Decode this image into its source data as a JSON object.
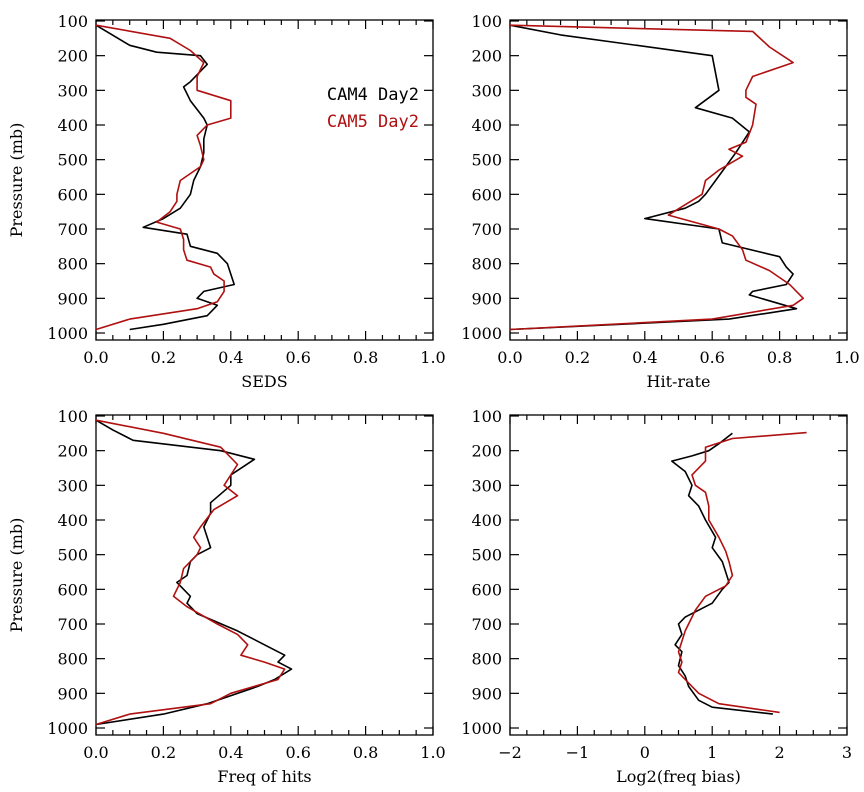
{
  "colors": {
    "cam4": "#000000",
    "cam5": "#b01010"
  },
  "chart_data": [
    {
      "type": "line",
      "title": "",
      "xlabel": "SEDS",
      "ylabel": "Pressure (mb)",
      "xlim": [
        0.0,
        1.0
      ],
      "ylim": [
        1000,
        100
      ],
      "xticks": [
        "0.0",
        "0.2",
        "0.4",
        "0.6",
        "0.8",
        "1.0"
      ],
      "yticks": [
        "100",
        "200",
        "300",
        "400",
        "500",
        "600",
        "700",
        "800",
        "900",
        "1000"
      ],
      "legend": {
        "position": "top-right",
        "entries": [
          "CAM4 Day2",
          "CAM5 Day2"
        ]
      },
      "series": [
        {
          "name": "CAM4 Day2",
          "color": "#000000",
          "points": [
            [
              0,
              112
            ],
            [
              0.1,
              170
            ],
            [
              0.18,
              190
            ],
            [
              0.31,
              200
            ],
            [
              0.33,
              225
            ],
            [
              0.28,
              275
            ],
            [
              0.26,
              290
            ],
            [
              0.28,
              330
            ],
            [
              0.32,
              380
            ],
            [
              0.33,
              400
            ],
            [
              0.32,
              440
            ],
            [
              0.32,
              480
            ],
            [
              0.31,
              520
            ],
            [
              0.29,
              560
            ],
            [
              0.28,
              600
            ],
            [
              0.25,
              640
            ],
            [
              0.2,
              670
            ],
            [
              0.14,
              695
            ],
            [
              0.27,
              715
            ],
            [
              0.28,
              750
            ],
            [
              0.36,
              770
            ],
            [
              0.39,
              800
            ],
            [
              0.4,
              830
            ],
            [
              0.41,
              860
            ],
            [
              0.32,
              880
            ],
            [
              0.3,
              900
            ],
            [
              0.36,
              920
            ],
            [
              0.33,
              950
            ],
            [
              0.2,
              975
            ],
            [
              0.1,
              990
            ]
          ]
        },
        {
          "name": "CAM5 Day2",
          "color": "#b01010",
          "points": [
            [
              0,
              112
            ],
            [
              0.22,
              150
            ],
            [
              0.28,
              185
            ],
            [
              0.32,
              220
            ],
            [
              0.3,
              260
            ],
            [
              0.3,
              300
            ],
            [
              0.4,
              330
            ],
            [
              0.4,
              360
            ],
            [
              0.4,
              380
            ],
            [
              0.33,
              400
            ],
            [
              0.3,
              430
            ],
            [
              0.31,
              460
            ],
            [
              0.32,
              500
            ],
            [
              0.31,
              520
            ],
            [
              0.25,
              560
            ],
            [
              0.24,
              600
            ],
            [
              0.24,
              620
            ],
            [
              0.22,
              650
            ],
            [
              0.18,
              680
            ],
            [
              0.25,
              700
            ],
            [
              0.26,
              730
            ],
            [
              0.26,
              760
            ],
            [
              0.27,
              790
            ],
            [
              0.34,
              810
            ],
            [
              0.35,
              830
            ],
            [
              0.38,
              850
            ],
            [
              0.38,
              880
            ],
            [
              0.36,
              910
            ],
            [
              0.3,
              930
            ],
            [
              0.1,
              960
            ],
            [
              0,
              990
            ]
          ]
        }
      ]
    },
    {
      "type": "line",
      "title": "",
      "xlabel": "Hit-rate",
      "ylabel": "",
      "xlim": [
        0.0,
        1.0
      ],
      "ylim": [
        1000,
        100
      ],
      "xticks": [
        "0.0",
        "0.2",
        "0.4",
        "0.6",
        "0.8",
        "1.0"
      ],
      "yticks": [
        "100",
        "200",
        "300",
        "400",
        "500",
        "600",
        "700",
        "800",
        "900",
        "1000"
      ],
      "series": [
        {
          "name": "CAM4 Day2",
          "color": "#000000",
          "points": [
            [
              0,
              112
            ],
            [
              0.15,
              140
            ],
            [
              0.6,
              200
            ],
            [
              0.62,
              300
            ],
            [
              0.55,
              350
            ],
            [
              0.66,
              380
            ],
            [
              0.71,
              420
            ],
            [
              0.67,
              480
            ],
            [
              0.64,
              520
            ],
            [
              0.61,
              560
            ],
            [
              0.58,
              600
            ],
            [
              0.56,
              620
            ],
            [
              0.52,
              640
            ],
            [
              0.4,
              670
            ],
            [
              0.62,
              700
            ],
            [
              0.63,
              740
            ],
            [
              0.8,
              780
            ],
            [
              0.82,
              810
            ],
            [
              0.84,
              830
            ],
            [
              0.82,
              860
            ],
            [
              0.72,
              880
            ],
            [
              0.71,
              890
            ],
            [
              0.78,
              910
            ],
            [
              0.85,
              930
            ],
            [
              0.65,
              960
            ],
            [
              0,
              990
            ]
          ]
        },
        {
          "name": "CAM5 Day2",
          "color": "#b01010",
          "points": [
            [
              0,
              112
            ],
            [
              0.72,
              130
            ],
            [
              0.77,
              175
            ],
            [
              0.84,
              220
            ],
            [
              0.72,
              260
            ],
            [
              0.7,
              300
            ],
            [
              0.7,
              320
            ],
            [
              0.73,
              340
            ],
            [
              0.72,
              400
            ],
            [
              0.7,
              450
            ],
            [
              0.65,
              470
            ],
            [
              0.69,
              490
            ],
            [
              0.62,
              530
            ],
            [
              0.58,
              560
            ],
            [
              0.57,
              600
            ],
            [
              0.52,
              630
            ],
            [
              0.47,
              660
            ],
            [
              0.62,
              700
            ],
            [
              0.66,
              720
            ],
            [
              0.69,
              760
            ],
            [
              0.7,
              790
            ],
            [
              0.77,
              820
            ],
            [
              0.83,
              860
            ],
            [
              0.87,
              900
            ],
            [
              0.84,
              920
            ],
            [
              0.6,
              960
            ],
            [
              0,
              990
            ]
          ]
        }
      ]
    },
    {
      "type": "line",
      "title": "",
      "xlabel": "Freq of hits",
      "ylabel": "Pressure (mb)",
      "xlim": [
        0.0,
        1.0
      ],
      "ylim": [
        1000,
        100
      ],
      "xticks": [
        "0.0",
        "0.2",
        "0.4",
        "0.6",
        "0.8",
        "1.0"
      ],
      "yticks": [
        "100",
        "200",
        "300",
        "400",
        "500",
        "600",
        "700",
        "800",
        "900",
        "1000"
      ],
      "series": [
        {
          "name": "CAM4 Day2",
          "color": "#000000",
          "points": [
            [
              0,
              112
            ],
            [
              0.05,
              140
            ],
            [
              0.11,
              170
            ],
            [
              0.37,
              200
            ],
            [
              0.47,
              225
            ],
            [
              0.4,
              270
            ],
            [
              0.4,
              300
            ],
            [
              0.34,
              350
            ],
            [
              0.34,
              380
            ],
            [
              0.32,
              420
            ],
            [
              0.34,
              480
            ],
            [
              0.3,
              500
            ],
            [
              0.28,
              520
            ],
            [
              0.27,
              560
            ],
            [
              0.24,
              580
            ],
            [
              0.28,
              620
            ],
            [
              0.27,
              640
            ],
            [
              0.3,
              670
            ],
            [
              0.42,
              720
            ],
            [
              0.5,
              760
            ],
            [
              0.56,
              790
            ],
            [
              0.54,
              810
            ],
            [
              0.58,
              830
            ],
            [
              0.53,
              860
            ],
            [
              0.48,
              880
            ],
            [
              0.33,
              930
            ],
            [
              0.2,
              960
            ],
            [
              0,
              990
            ]
          ]
        },
        {
          "name": "CAM5 Day2",
          "color": "#b01010",
          "points": [
            [
              0,
              112
            ],
            [
              0.2,
              150
            ],
            [
              0.37,
              190
            ],
            [
              0.42,
              240
            ],
            [
              0.38,
              300
            ],
            [
              0.42,
              330
            ],
            [
              0.35,
              370
            ],
            [
              0.31,
              420
            ],
            [
              0.29,
              450
            ],
            [
              0.31,
              480
            ],
            [
              0.3,
              500
            ],
            [
              0.26,
              540
            ],
            [
              0.25,
              580
            ],
            [
              0.23,
              620
            ],
            [
              0.27,
              650
            ],
            [
              0.36,
              700
            ],
            [
              0.42,
              730
            ],
            [
              0.45,
              760
            ],
            [
              0.43,
              790
            ],
            [
              0.5,
              810
            ],
            [
              0.56,
              830
            ],
            [
              0.54,
              860
            ],
            [
              0.4,
              900
            ],
            [
              0.34,
              930
            ],
            [
              0.1,
              960
            ],
            [
              0,
              990
            ]
          ]
        }
      ]
    },
    {
      "type": "line",
      "title": "",
      "xlabel": "Log2(freq bias)",
      "ylabel": "",
      "xlim": [
        -2,
        3
      ],
      "ylim": [
        1000,
        100
      ],
      "xticks": [
        "−2",
        "−1",
        "0",
        "1",
        "2",
        "3"
      ],
      "yticks": [
        "100",
        "200",
        "300",
        "400",
        "500",
        "600",
        "700",
        "800",
        "900",
        "1000"
      ],
      "series": [
        {
          "name": "CAM4 Day2",
          "color": "#000000",
          "points": [
            [
              1.3,
              150
            ],
            [
              1.1,
              180
            ],
            [
              0.95,
              200
            ],
            [
              0.7,
              215
            ],
            [
              0.4,
              230
            ],
            [
              0.6,
              260
            ],
            [
              0.7,
              300
            ],
            [
              0.65,
              330
            ],
            [
              0.8,
              360
            ],
            [
              0.9,
              400
            ],
            [
              1.05,
              450
            ],
            [
              1.0,
              480
            ],
            [
              1.15,
              520
            ],
            [
              1.2,
              550
            ],
            [
              1.25,
              580
            ],
            [
              1.15,
              600
            ],
            [
              1.0,
              640
            ],
            [
              0.6,
              680
            ],
            [
              0.5,
              700
            ],
            [
              0.55,
              730
            ],
            [
              0.45,
              760
            ],
            [
              0.55,
              780
            ],
            [
              0.5,
              820
            ],
            [
              0.6,
              850
            ],
            [
              0.65,
              880
            ],
            [
              0.8,
              920
            ],
            [
              1.0,
              940
            ],
            [
              1.9,
              960
            ]
          ]
        },
        {
          "name": "CAM5 Day2",
          "color": "#b01010",
          "points": [
            [
              2.4,
              148
            ],
            [
              1.3,
              165
            ],
            [
              0.9,
              190
            ],
            [
              0.9,
              230
            ],
            [
              0.7,
              270
            ],
            [
              0.75,
              300
            ],
            [
              0.9,
              320
            ],
            [
              0.95,
              360
            ],
            [
              0.95,
              400
            ],
            [
              1.1,
              450
            ],
            [
              1.2,
              490
            ],
            [
              1.25,
              520
            ],
            [
              1.3,
              560
            ],
            [
              1.2,
              590
            ],
            [
              0.9,
              620
            ],
            [
              0.75,
              660
            ],
            [
              0.65,
              700
            ],
            [
              0.6,
              720
            ],
            [
              0.55,
              750
            ],
            [
              0.5,
              780
            ],
            [
              0.55,
              810
            ],
            [
              0.5,
              840
            ],
            [
              0.6,
              860
            ],
            [
              0.8,
              900
            ],
            [
              1.1,
              930
            ],
            [
              2.0,
              955
            ]
          ]
        }
      ]
    }
  ]
}
